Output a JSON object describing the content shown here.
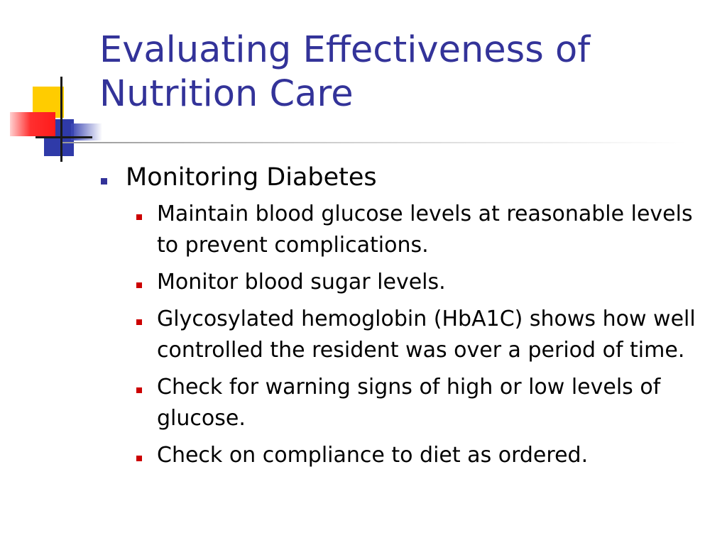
{
  "slide": {
    "title_lines": [
      "Evaluating Effectiveness of",
      "Nutrition Care"
    ],
    "main_bullet": "Monitoring Diabetes",
    "sub_bullets": [
      "Maintain blood glucose levels at reasonable levels to prevent complications.",
      "Monitor blood sugar levels.",
      "Glycosylated hemoglobin (HbA1C) shows how well controlled the resident was over a period of time.",
      "Check for warning signs of high or low levels of glucose.",
      "Check on compliance to diet as ordered."
    ]
  },
  "colors": {
    "title": "#333399",
    "body_text": "#000000",
    "level1_bullet": "#333399",
    "level2_bullet": "#cc0000",
    "accent_yellow": "#ffcc00",
    "accent_red": "#ff1a1a",
    "accent_blue": "#2f3aa8"
  }
}
